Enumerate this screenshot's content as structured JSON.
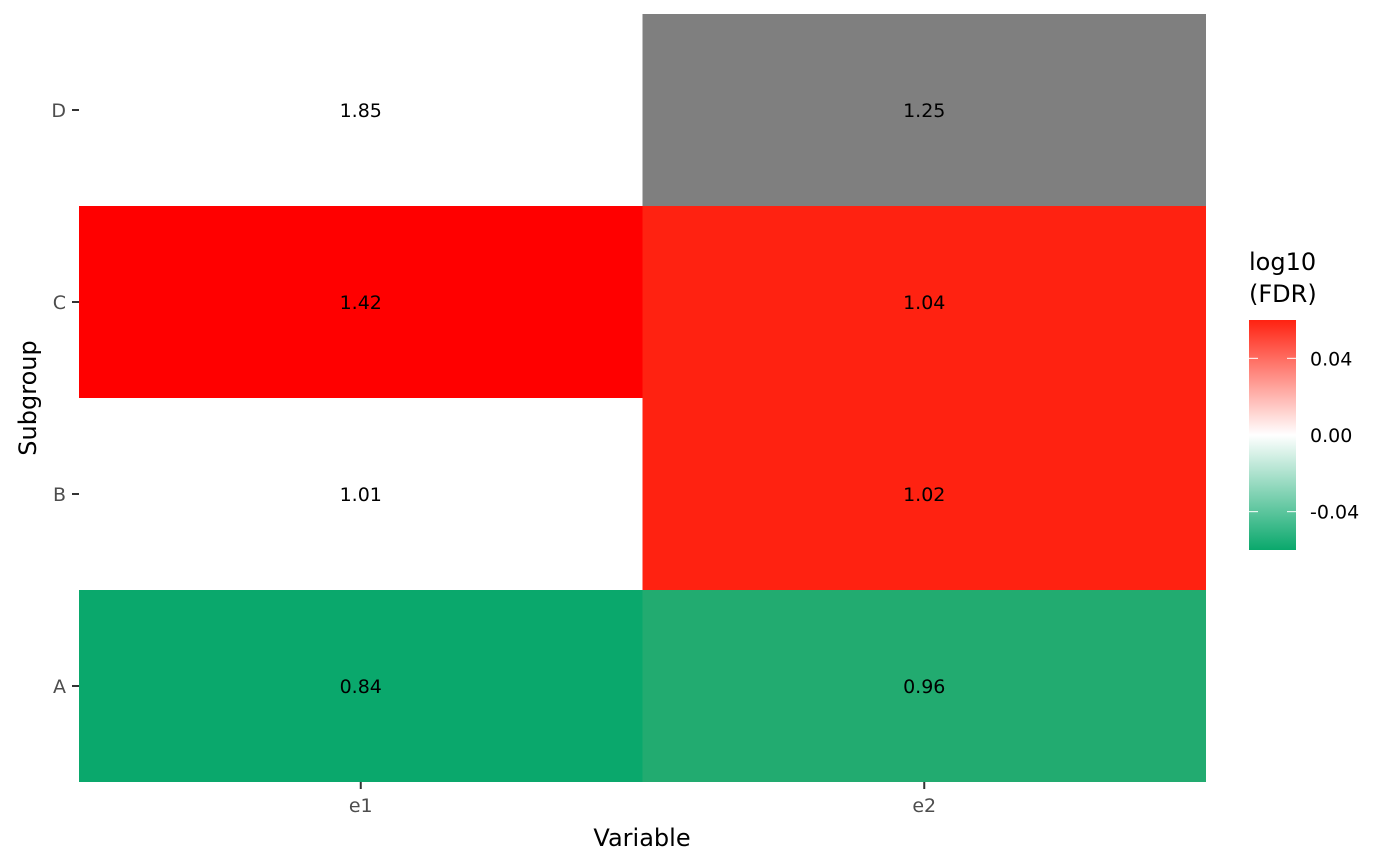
{
  "chart_data": {
    "type": "heatmap",
    "title": "",
    "xlabel": "Variable",
    "ylabel": "Subgroup",
    "x_categories": [
      "e1",
      "e2"
    ],
    "y_categories": [
      "A",
      "B",
      "C",
      "D"
    ],
    "cells": [
      {
        "x": "e1",
        "y": "D",
        "label": "1.85",
        "fill": "#ffffff"
      },
      {
        "x": "e2",
        "y": "D",
        "label": "1.25",
        "fill": "#7f7f7f"
      },
      {
        "x": "e1",
        "y": "C",
        "label": "1.42",
        "fill": "#ff0000"
      },
      {
        "x": "e2",
        "y": "C",
        "label": "1.04",
        "fill": "#ff2211"
      },
      {
        "x": "e1",
        "y": "B",
        "label": "1.01",
        "fill": "#ffffff"
      },
      {
        "x": "e2",
        "y": "B",
        "label": "1.02",
        "fill": "#ff2211"
      },
      {
        "x": "e1",
        "y": "A",
        "label": "0.84",
        "fill": "#0aa86c"
      },
      {
        "x": "e2",
        "y": "A",
        "label": "0.96",
        "fill": "#22ab70"
      }
    ],
    "legend": {
      "title_lines": [
        "log10",
        "(FDR)"
      ],
      "position": "right",
      "range": [
        -0.06,
        0.06
      ],
      "breaks": [
        0.04,
        0.0,
        -0.04
      ],
      "break_labels": [
        "0.04",
        "0.00",
        "-0.04"
      ],
      "colors": {
        "low": "#0aa86c",
        "mid": "#ffffff",
        "high": "#ff2211"
      }
    },
    "grid": false
  }
}
